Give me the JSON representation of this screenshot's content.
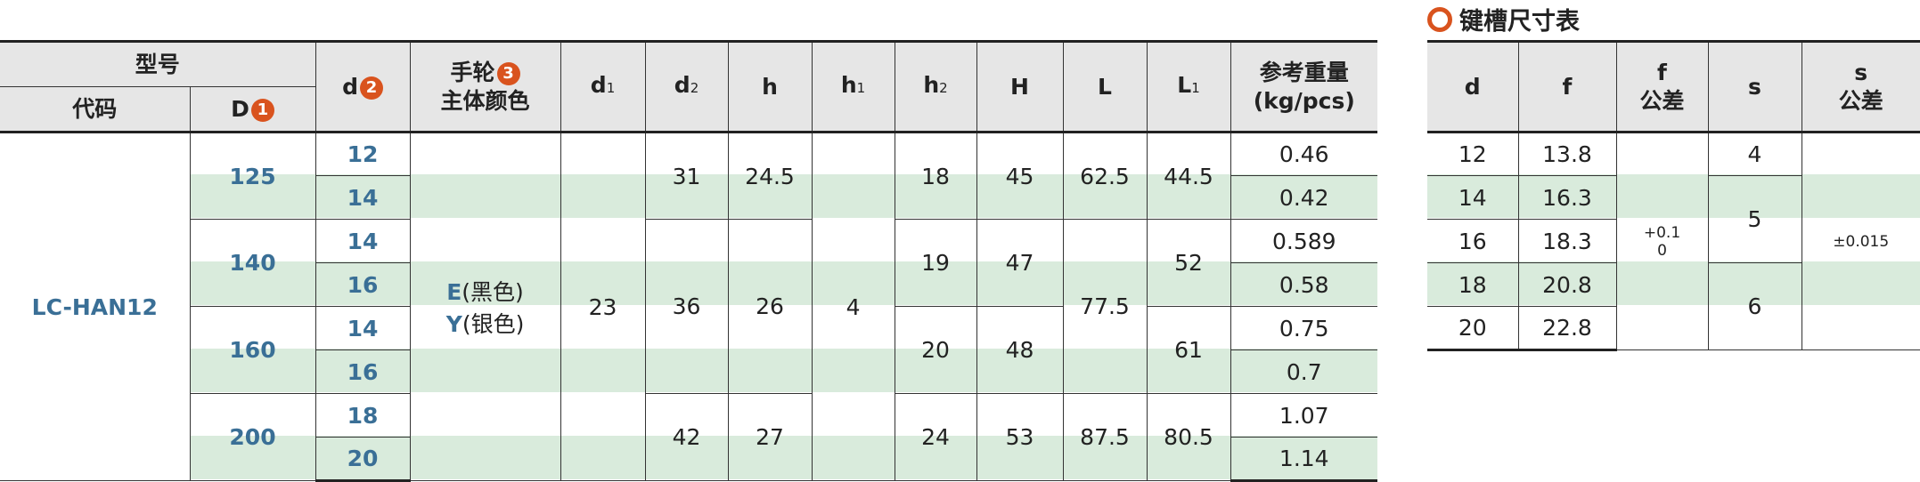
{
  "main_table": {
    "headers": {
      "model": "型号",
      "code": "代码",
      "D": "D",
      "D_badge": "1",
      "d": "d",
      "d_badge": "2",
      "color_line1": "手轮",
      "color_badge": "3",
      "color_line2": "主体颜色",
      "d1": "d",
      "d1_sub": "1",
      "d2": "d",
      "d2_sub": "2",
      "h": "h",
      "h1": "h",
      "h1_sub": "1",
      "h2": "h",
      "h2_sub": "2",
      "H": "H",
      "L": "L",
      "L1": "L",
      "L1_sub": "1",
      "weight_line1": "参考重量",
      "weight_line2": "(kg/pcs)"
    },
    "code": "LC-HAN12",
    "color_E_letter": "E",
    "color_E_text": "(黑色)",
    "color_Y_letter": "Y",
    "color_Y_text": "(银色)",
    "d1": "23",
    "h1": "4",
    "D": [
      "125",
      "140",
      "160",
      "200"
    ],
    "d": [
      "12",
      "14",
      "14",
      "16",
      "14",
      "16",
      "18",
      "20"
    ],
    "d2": [
      "31",
      "36",
      "42"
    ],
    "h": [
      "24.5",
      "26",
      "27"
    ],
    "h2": [
      "18",
      "19",
      "20",
      "24"
    ],
    "H": [
      "45",
      "47",
      "48",
      "53"
    ],
    "L": [
      "62.5",
      "77.5",
      "87.5"
    ],
    "L1": [
      "44.5",
      "52",
      "61",
      "80.5"
    ],
    "weight": [
      "0.46",
      "0.42",
      "0.589",
      "0.58",
      "0.75",
      "0.7",
      "1.07",
      "1.14"
    ]
  },
  "keyway_table": {
    "title": "键槽尺寸表",
    "headers": {
      "d": "d",
      "f": "f",
      "f_tol_1": "f",
      "f_tol_2": "公差",
      "s": "s",
      "s_tol_1": "s",
      "s_tol_2": "公差"
    },
    "d": [
      "12",
      "14",
      "16",
      "18",
      "20"
    ],
    "f": [
      "13.8",
      "16.3",
      "18.3",
      "20.8",
      "22.8"
    ],
    "f_tol_upper": "+0.1",
    "f_tol_lower": "0",
    "s": [
      "4",
      "5",
      "6"
    ],
    "s_tol": "±0.015"
  },
  "colors": {
    "accent": "#d9531e",
    "code_blue": "#3a6f96",
    "stripe": "#d9ebdc",
    "header": "#e6e6e6"
  }
}
